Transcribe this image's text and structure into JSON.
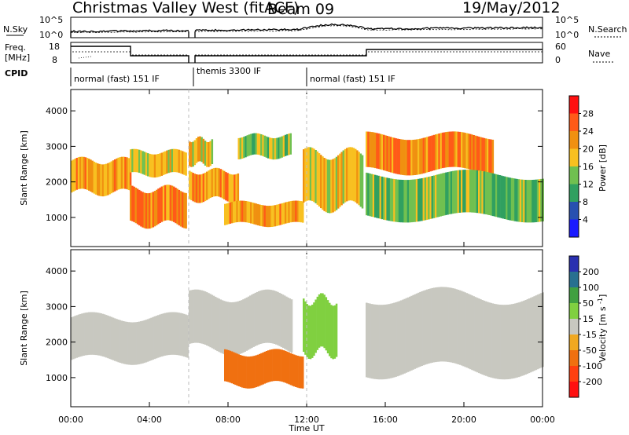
{
  "header": {
    "station": "Christmas Valley West (fitACF)",
    "beam": "Beam 09",
    "date": "19/May/2012"
  },
  "noise_panel": {
    "left_label": "N.Sky",
    "right_label": "N.Search",
    "ticks_left": [
      "10^5",
      "10^0"
    ],
    "ticks_right": [
      "10^5",
      "10^0"
    ]
  },
  "freq_panel": {
    "left_label_1": "Freq.",
    "left_label_2": "[MHz]",
    "right_label": "Nave",
    "ticks_left": [
      "18",
      "8"
    ],
    "ticks_right": [
      "60",
      "0"
    ]
  },
  "cpid": {
    "label": "CPID",
    "segments": [
      {
        "label": "normal (fast) 151 IF",
        "start": 0,
        "end": 6.0
      },
      {
        "label": "themis 3300 IF",
        "start": 6.0,
        "end": 12.0
      },
      {
        "label": "normal (fast) 151 IF",
        "start": 12.0,
        "end": 24.0
      }
    ]
  },
  "xaxis": {
    "label": "Time UT",
    "ticks": [
      "00:00",
      "04:00",
      "08:00",
      "12:00",
      "16:00",
      "20:00",
      "00:00"
    ]
  },
  "chart_data": [
    {
      "type": "heatmap",
      "panel": "power",
      "title": "",
      "xlabel": "Time UT",
      "ylabel": "Slant Range [km]",
      "xlim": [
        0,
        24
      ],
      "ylim": [
        180,
        4600
      ],
      "yticks": [
        "1000",
        "2000",
        "3000",
        "4000"
      ],
      "colorbar": {
        "label": "Power [dB]",
        "ticks": [
          "4",
          "8",
          "12",
          "16",
          "20",
          "24",
          "28"
        ],
        "colors": [
          "#1a1aff",
          "#2850b0",
          "#30a060",
          "#70c050",
          "#f8c020",
          "#f09010",
          "#ff5a18",
          "#ff1010"
        ]
      },
      "bands": [
        {
          "start": 0.0,
          "end": 3.0,
          "lower": 1700,
          "upper": 2600,
          "level": 26
        },
        {
          "start": 3.0,
          "end": 5.9,
          "lower": 2200,
          "upper": 2850,
          "level": 22
        },
        {
          "start": 3.0,
          "end": 5.9,
          "lower": 800,
          "upper": 1800,
          "level": 28
        },
        {
          "start": 6.0,
          "end": 8.5,
          "lower": 1500,
          "upper": 2300,
          "level": 26
        },
        {
          "start": 6.0,
          "end": 7.2,
          "lower": 2500,
          "upper": 3200,
          "level": 24
        },
        {
          "start": 8.5,
          "end": 11.2,
          "lower": 2700,
          "upper": 3300,
          "level": 20
        },
        {
          "start": 7.8,
          "end": 11.8,
          "lower": 800,
          "upper": 1400,
          "level": 26
        },
        {
          "start": 11.8,
          "end": 14.8,
          "lower": 1300,
          "upper": 2800,
          "level": 22
        },
        {
          "start": 15.0,
          "end": 21.5,
          "lower": 2300,
          "upper": 3300,
          "level": 28
        },
        {
          "start": 15.0,
          "end": 24.0,
          "lower": 1000,
          "upper": 2200,
          "level": 18
        }
      ]
    },
    {
      "type": "heatmap",
      "panel": "velocity",
      "title": "",
      "xlabel": "Time UT",
      "ylabel": "Slant Range [km]",
      "xlim": [
        0,
        24
      ],
      "ylim": [
        180,
        4600
      ],
      "yticks": [
        "1000",
        "2000",
        "3000",
        "4000"
      ],
      "colorbar": {
        "label": "Velocity [m s^-1]",
        "ticks": [
          "200",
          "100",
          "50",
          "15",
          "-15",
          "-50",
          "-100",
          "-200"
        ],
        "colors": [
          "#2a30b0",
          "#287090",
          "#40a040",
          "#80d040",
          "#c8c8c0",
          "#f0a820",
          "#f07010",
          "#ff4010",
          "#ff1010"
        ]
      },
      "bands": [
        {
          "start": 0.0,
          "end": 5.9,
          "lower": 1500,
          "upper": 2700,
          "level": "ground"
        },
        {
          "start": 6.0,
          "end": 11.2,
          "lower": 1800,
          "upper": 3300,
          "level": "ground"
        },
        {
          "start": 7.8,
          "end": 11.8,
          "lower": 800,
          "upper": 1700,
          "level": -60
        },
        {
          "start": 11.8,
          "end": 13.5,
          "lower": 1700,
          "upper": 3200,
          "level": 40
        },
        {
          "start": 15.0,
          "end": 24.0,
          "lower": 1200,
          "upper": 3300,
          "level": "ground"
        }
      ]
    }
  ]
}
